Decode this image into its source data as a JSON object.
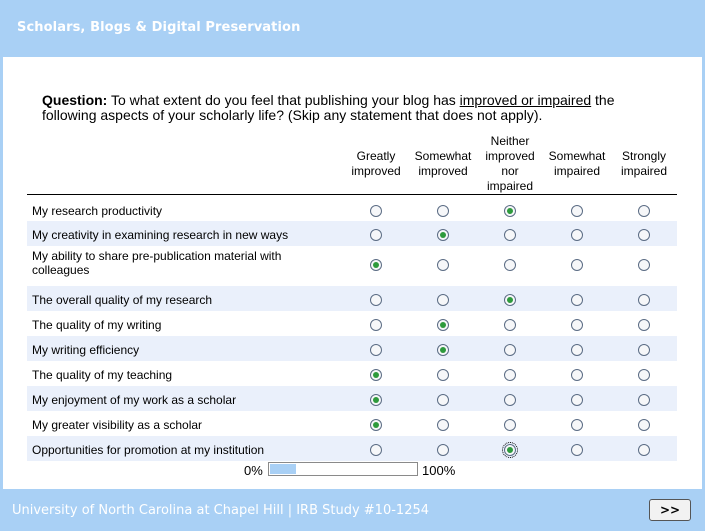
{
  "header": {
    "title": "Scholars, Blogs & Digital Preservation"
  },
  "question": {
    "label": "Question:",
    "text_before": " To what extent do you feel that publishing your blog has ",
    "underlined": "improved or impaired",
    "text_after": " the following aspects of your scholarly life? (Skip any statement that does not apply)."
  },
  "columns": [
    "Greatly improved",
    "Somewhat improved",
    "Neither improved nor impaired",
    "Somewhat impaired",
    "Strongly impaired"
  ],
  "rows": [
    {
      "label": "My research productivity",
      "selected": 2
    },
    {
      "label": "My creativity in examining research in new ways",
      "selected": 1
    },
    {
      "label": "My ability to share pre-publication material with colleagues",
      "selected": 0
    },
    {
      "label": "The overall quality of my research",
      "selected": 2
    },
    {
      "label": "The quality of my writing",
      "selected": 1
    },
    {
      "label": "My writing efficiency",
      "selected": 1
    },
    {
      "label": "The quality of my teaching",
      "selected": 0
    },
    {
      "label": "My enjoyment of my work as a scholar",
      "selected": 0
    },
    {
      "label": "My greater visibility as a scholar",
      "selected": 0
    },
    {
      "label": "Opportunities for promotion at my institution",
      "selected": 2
    }
  ],
  "progress": {
    "min_label": "0%",
    "max_label": "100%",
    "value_fraction": 0.18
  },
  "footer": {
    "text": "University of North Carolina at Chapel Hill | IRB Study #10-1254"
  },
  "next_button": {
    "label": ">>"
  },
  "colors": {
    "accent": "#a9d0f5",
    "row_shade": "#eaf0fb",
    "radio_fill": "#2e9a3c"
  }
}
